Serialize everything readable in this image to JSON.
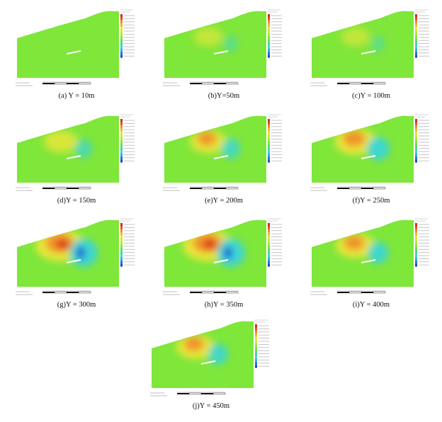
{
  "panels": [
    {
      "id": "a",
      "caption": "(a) Y = 10m"
    },
    {
      "id": "b",
      "caption": "(b)Y=50m"
    },
    {
      "id": "c",
      "caption": "(c)Y = 100m"
    },
    {
      "id": "d",
      "caption": "(d)Y = 150m"
    },
    {
      "id": "e",
      "caption": "(e)Y = 200m"
    },
    {
      "id": "f",
      "caption": "(f)Y = 250m"
    },
    {
      "id": "g",
      "caption": "(g)Y = 300m"
    },
    {
      "id": "h",
      "caption": "(h)Y = 350m"
    },
    {
      "id": "i",
      "caption": "(i)Y = 400m"
    },
    {
      "id": "j",
      "caption": "(j)Y = 450m"
    }
  ],
  "colors": {
    "green": "#7fe63a",
    "yellow": "#e8e63a",
    "orange": "#f28a2a",
    "red": "#d8261c",
    "cyan": "#3fd6d0",
    "blue": "#1848d8"
  }
}
